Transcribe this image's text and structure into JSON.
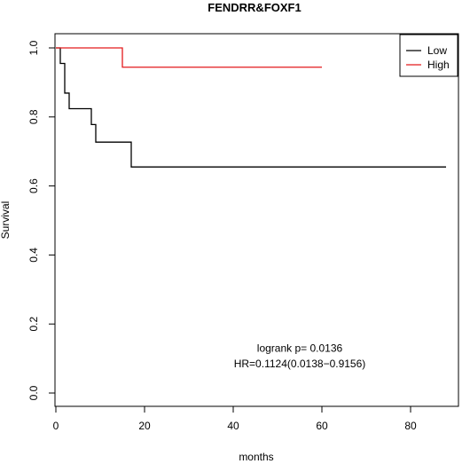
{
  "chart_data": {
    "type": "line",
    "title": "FENDRR&FOXF1",
    "xlabel": "months",
    "ylabel": "Survival",
    "xlim": [
      0,
      88
    ],
    "ylim": [
      0,
      1
    ],
    "x_ticks": [
      0,
      20,
      40,
      60,
      80
    ],
    "x_tick_labels": [
      "0",
      "20",
      "40",
      "60",
      "80"
    ],
    "y_ticks": [
      0,
      0.2,
      0.4,
      0.6,
      0.8,
      1.0
    ],
    "y_tick_labels": [
      "0.0",
      "0.2",
      "0.4",
      "0.6",
      "0.8",
      "1.0"
    ],
    "legend_position": "top-right",
    "series": [
      {
        "name": "Low",
        "color": "#000000",
        "step": true,
        "x": [
          0,
          1,
          2,
          3,
          8,
          9,
          17,
          88
        ],
        "y": [
          1.0,
          0.955,
          0.869,
          0.824,
          0.778,
          0.727,
          0.655,
          0.655
        ]
      },
      {
        "name": "High",
        "color": "#e31a1c",
        "step": true,
        "x": [
          0,
          15,
          60
        ],
        "y": [
          1.0,
          0.944,
          0.944
        ]
      }
    ],
    "annotations": [
      {
        "text": "logrank p= 0.0136",
        "x": 55,
        "y": 0.12
      },
      {
        "text": "HR=0.1124(0.0138−0.9156)",
        "x": 55,
        "y": 0.075
      }
    ]
  }
}
